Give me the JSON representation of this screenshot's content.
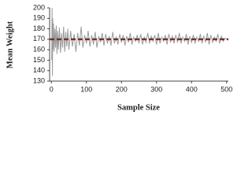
{
  "chart_data": {
    "type": "line",
    "x_label": "Sample Size",
    "y_label": "Mean Weight",
    "xlim": [
      -5,
      505
    ],
    "ylim": [
      130,
      200
    ],
    "xticks": [
      0,
      100,
      200,
      300,
      400,
      500
    ],
    "yticks": [
      130,
      140,
      150,
      160,
      170,
      180,
      190,
      200
    ],
    "grid": false,
    "reference_line": {
      "value": 170,
      "color": "#7b2e2e",
      "dashed": true
    },
    "series": [
      {
        "color": "#9a9a9a",
        "x": [
          1,
          2,
          3,
          4,
          5,
          6,
          8,
          10,
          12,
          14,
          16,
          18,
          20,
          23,
          26,
          29,
          32,
          35,
          38,
          41,
          44,
          47,
          50,
          55,
          60,
          65,
          70,
          75,
          80,
          85,
          90,
          95,
          100,
          105,
          110,
          115,
          120,
          125,
          130,
          135,
          140,
          145,
          150,
          155,
          160,
          165,
          170,
          175,
          180,
          185,
          190,
          195,
          200,
          205,
          210,
          215,
          220,
          225,
          230,
          235,
          240,
          245,
          250,
          255,
          260,
          265,
          270,
          275,
          280,
          285,
          290,
          295,
          300,
          305,
          310,
          315,
          320,
          325,
          330,
          335,
          340,
          345,
          350,
          355,
          360,
          365,
          370,
          375,
          380,
          385,
          390,
          395,
          400,
          405,
          410,
          415,
          420,
          425,
          430,
          435,
          440,
          445,
          450,
          455,
          460,
          465,
          470,
          475,
          480,
          485,
          490,
          495,
          500
        ],
        "values": [
          150,
          200,
          135,
          190,
          160,
          185,
          158,
          180,
          162,
          183,
          156,
          178,
          160,
          181,
          157,
          176,
          162,
          182,
          158,
          177,
          163,
          180,
          160,
          178,
          163,
          175,
          158,
          176,
          164,
          182,
          162,
          174,
          166,
          178,
          163,
          174,
          165,
          177,
          162,
          173,
          167,
          176,
          164,
          175,
          166,
          173,
          164,
          177,
          166,
          172,
          165,
          175,
          167,
          174,
          164,
          173,
          167,
          176,
          165,
          172,
          168,
          174,
          166,
          175,
          165,
          172,
          167,
          176,
          166,
          173,
          168,
          174,
          165,
          176,
          166,
          172,
          168,
          174,
          165,
          175,
          167,
          173,
          166,
          174,
          167,
          176,
          166,
          172,
          168,
          175,
          165,
          173,
          167,
          174,
          166,
          172,
          168,
          175,
          166,
          173,
          167,
          176,
          165,
          174,
          167,
          172,
          168,
          175,
          166,
          173,
          168,
          171,
          170
        ]
      }
    ]
  }
}
